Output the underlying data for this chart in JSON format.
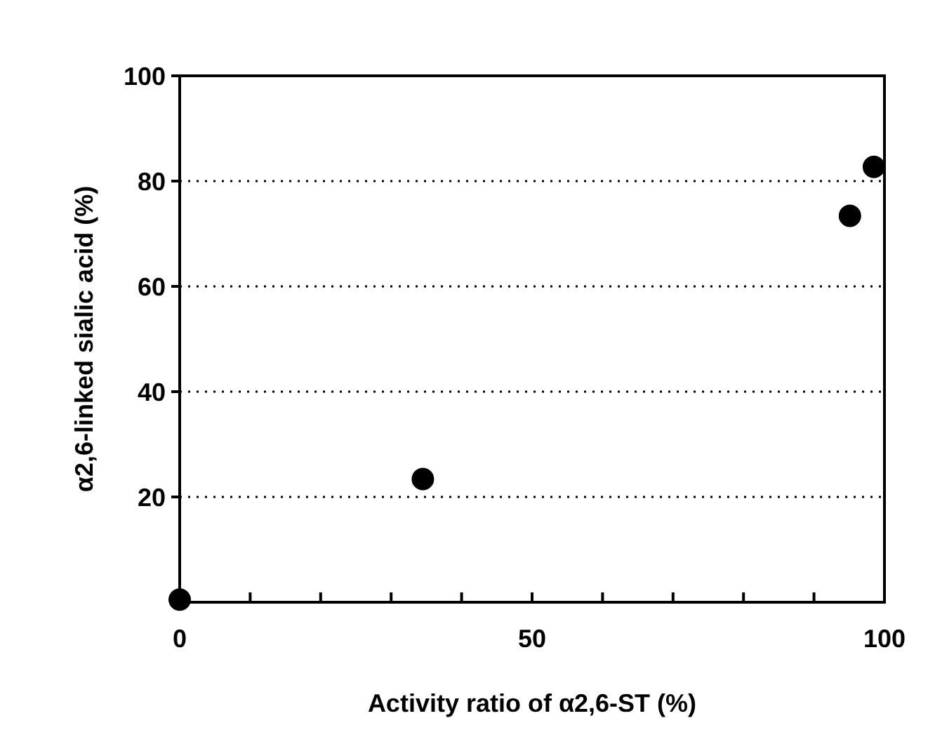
{
  "chart_data": {
    "type": "scatter",
    "xlabel": "Activity ratio of α2,6-ST (%)",
    "ylabel": "α2,6-linked sialic acid (%)",
    "x": [
      0,
      34.5,
      95.1,
      98.5
    ],
    "values": [
      0.5,
      23.4,
      73.4,
      82.7
    ],
    "color": "#000000",
    "marker": "circle",
    "xlim": [
      0,
      100
    ],
    "ylim": [
      0,
      100
    ],
    "xticks": [
      0,
      {
        "value": 10,
        "label": null
      },
      {
        "value": 20,
        "label": null
      },
      {
        "value": 30,
        "label": null
      },
      {
        "value": 40,
        "label": null
      },
      50,
      {
        "value": 60,
        "label": null
      },
      {
        "value": 70,
        "label": null
      },
      {
        "value": 80,
        "label": null
      },
      {
        "value": 90,
        "label": null
      },
      100
    ],
    "yticks": [
      20,
      40,
      60,
      80,
      100
    ],
    "grid": "y"
  }
}
